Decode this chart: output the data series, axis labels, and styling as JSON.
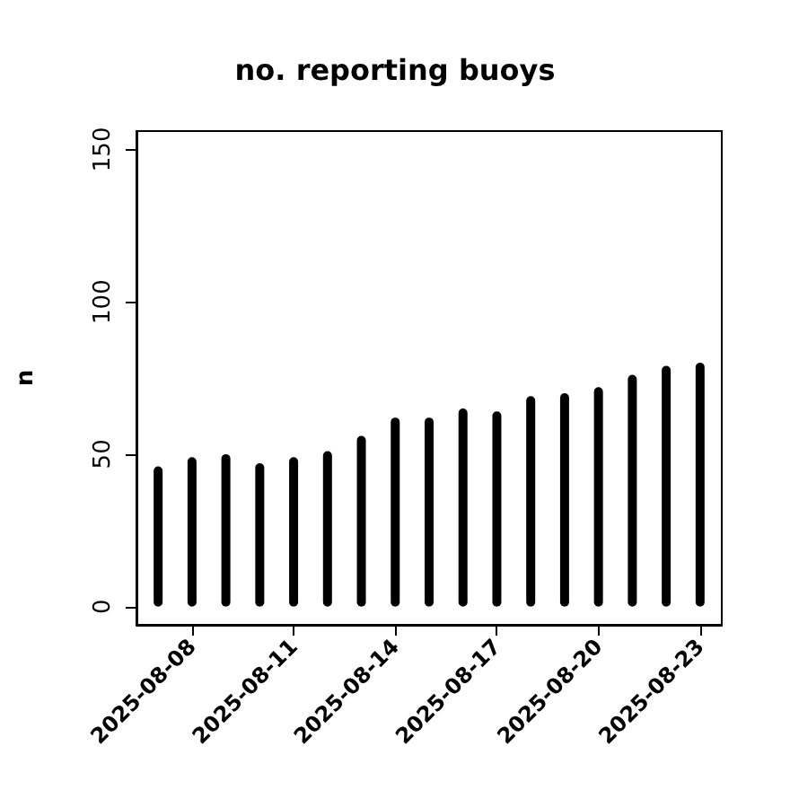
{
  "chart_data": {
    "type": "bar",
    "title": "no. reporting buoys",
    "ylabel": "n",
    "x": [
      "2025-08-07",
      "2025-08-08",
      "2025-08-09",
      "2025-08-10",
      "2025-08-11",
      "2025-08-12",
      "2025-08-13",
      "2025-08-14",
      "2025-08-15",
      "2025-08-16",
      "2025-08-17",
      "2025-08-18",
      "2025-08-19",
      "2025-08-20",
      "2025-08-21",
      "2025-08-22",
      "2025-08-23"
    ],
    "series": [
      {
        "color": "#000000",
        "values": [
          46,
          49,
          50,
          47,
          49,
          51,
          56,
          62,
          62,
          65,
          64,
          69,
          70,
          72,
          76,
          79,
          80
        ]
      }
    ],
    "xlim": [
      "2025-08-06T08:38",
      "2025-08-23T15:22"
    ],
    "xticks": [
      {
        "value": "2025-08-08",
        "label": "2025-08-08"
      },
      {
        "value": "2025-08-11",
        "label": "2025-08-11"
      },
      {
        "value": "2025-08-14",
        "label": "2025-08-14"
      },
      {
        "value": "2025-08-17",
        "label": "2025-08-17"
      },
      {
        "value": "2025-08-20",
        "label": "2025-08-20"
      },
      {
        "value": "2025-08-23",
        "label": "2025-08-23"
      }
    ],
    "ylim": [
      -6,
      156
    ],
    "yticks": [
      0,
      50,
      100,
      150
    ],
    "grid": false
  }
}
